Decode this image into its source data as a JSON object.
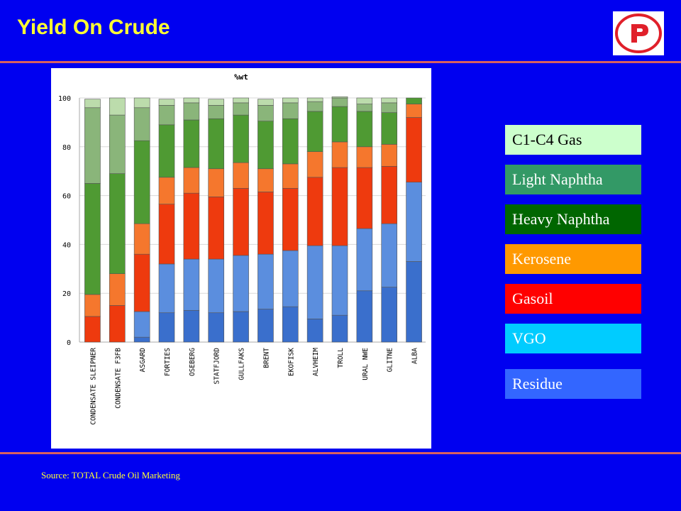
{
  "slide": {
    "title": "Yield On Crude",
    "source": "Source: TOTAL Crude Oil Marketing"
  },
  "logo": {
    "icon": "p-logo-icon",
    "color": "#e0202a"
  },
  "legend": [
    {
      "label": "C1-C4 Gas",
      "bg": "#ccffcc",
      "fg": "#000000"
    },
    {
      "label": "Light Naphtha",
      "bg": "#339966",
      "fg": "#ffffff"
    },
    {
      "label": "Heavy Naphtha",
      "bg": "#006600",
      "fg": "#ffffff"
    },
    {
      "label": "Kerosene",
      "bg": "#ff9900",
      "fg": "#ffffff"
    },
    {
      "label": "Gasoil",
      "bg": "#ff0000",
      "fg": "#ffffff"
    },
    {
      "label": "VGO",
      "bg": "#00ccff",
      "fg": "#ffffff"
    },
    {
      "label": "Residue",
      "bg": "#3366ff",
      "fg": "#ffffff"
    }
  ],
  "chart_data": {
    "type": "bar",
    "stacked": true,
    "title": "%wt",
    "ylim": [
      0,
      100
    ],
    "yticks": [
      0,
      20,
      40,
      60,
      80,
      100
    ],
    "grid": true,
    "categories": [
      "CONDENSATE SLEIPNER",
      "CONDENSATE F3FB",
      "ASGARD",
      "FORTIES",
      "OSEBERG",
      "STATFJORD",
      "GULLFAKS",
      "BRENT",
      "EKOFISK",
      "ALVHEIM",
      "TROLL",
      "URAL NWE",
      "GLITNE",
      "ALBA"
    ],
    "series": [
      {
        "color": "#3a6fcc",
        "values": [
          0,
          0,
          2,
          12,
          13,
          12,
          12.5,
          13.5,
          14.5,
          9.5,
          11,
          21,
          22.5,
          33
        ]
      },
      {
        "color": "#5b8ede",
        "values": [
          0,
          0,
          10.5,
          20,
          21,
          22,
          23,
          22.5,
          23,
          30,
          28.5,
          25.5,
          26,
          32.5
        ]
      },
      {
        "color": "#ee3a0e",
        "values": [
          10.5,
          15,
          23.5,
          24.5,
          27,
          25.5,
          27.5,
          25.5,
          25.5,
          28,
          32,
          25,
          23.5,
          26.5
        ]
      },
      {
        "color": "#f5772d",
        "values": [
          9,
          13,
          12.5,
          11,
          10.5,
          11.5,
          10.5,
          9.5,
          10,
          10.5,
          10.5,
          8.5,
          9,
          5.5
        ]
      },
      {
        "color": "#4f9a33",
        "values": [
          45.5,
          41,
          34,
          21.5,
          19.5,
          20.5,
          19.5,
          19.5,
          18.5,
          16.5,
          14.5,
          14.5,
          13,
          2.5
        ]
      },
      {
        "color": "#8ab57a",
        "values": [
          31,
          24,
          13.5,
          8,
          7,
          5.5,
          5,
          6.5,
          6.5,
          4,
          3.5,
          3,
          4,
          0
        ]
      },
      {
        "color": "#bcdcac",
        "values": [
          3.5,
          7,
          4,
          2.5,
          2,
          2.5,
          2,
          2.5,
          2,
          1.5,
          0.5,
          2.5,
          2,
          0
        ]
      }
    ]
  }
}
